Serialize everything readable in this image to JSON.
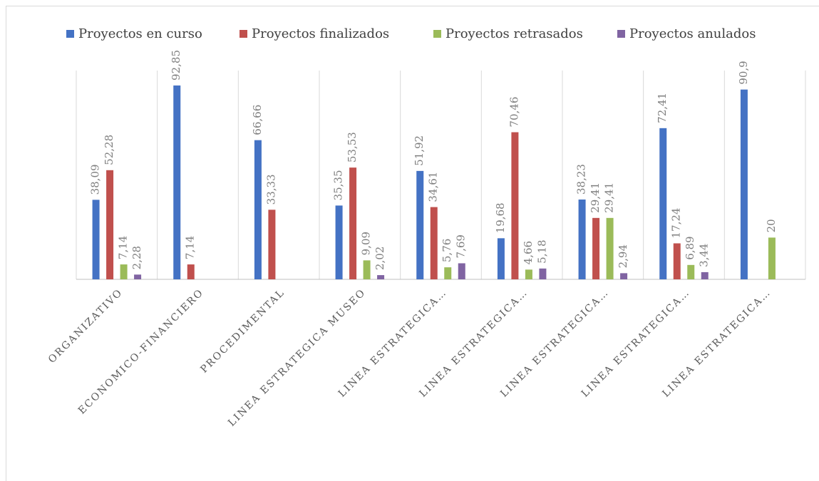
{
  "chart_data": {
    "type": "bar",
    "categories": [
      "ORGANIZATIVO",
      "ECONOMICO-FINANCIERO",
      "PROCEDIMENTAL",
      "LINEA ESTRATEGICA MUSEO",
      "LINEA ESTRATEGICA…",
      "LINEA ESTRATEGICA…",
      "LINEA ESTRATEGICA…",
      "LINEA ESTRATEGICA…",
      "LINEA ESTRATEGICA…"
    ],
    "series": [
      {
        "name": "Proyectos en curso",
        "color": "#4472c4",
        "values": [
          38.09,
          92.85,
          66.66,
          35.35,
          51.92,
          19.68,
          38.23,
          72.41,
          90.9
        ],
        "value_labels": [
          "38,09",
          "92,85",
          "66,66",
          "35,35",
          "51,92",
          "19,68",
          "38,23",
          "72,41",
          "90,9"
        ]
      },
      {
        "name": "Proyectos finalizados",
        "color": "#c0504d",
        "values": [
          52.28,
          7.14,
          33.33,
          53.53,
          34.61,
          70.46,
          29.41,
          17.24,
          null
        ],
        "value_labels": [
          "52,28",
          "7,14",
          "33,33",
          "53,53",
          "34,61",
          "70,46",
          "29,41",
          "17,24",
          null
        ]
      },
      {
        "name": "Proyectos retrasados",
        "color": "#9bbb59",
        "values": [
          7.14,
          null,
          null,
          9.09,
          5.76,
          4.66,
          29.41,
          6.89,
          20
        ],
        "value_labels": [
          "7,14",
          null,
          null,
          "9,09",
          "5,76",
          "4,66",
          "29,41",
          "6,89",
          "20"
        ]
      },
      {
        "name": "Proyectos anulados",
        "color": "#8064a2",
        "values": [
          2.28,
          null,
          null,
          2.02,
          7.69,
          5.18,
          2.94,
          3.44,
          null
        ],
        "value_labels": [
          "2,28",
          null,
          null,
          "2,02",
          "7,69",
          "5,18",
          "2,94",
          "3,44",
          null
        ]
      }
    ],
    "ylim": [
      0,
      100
    ],
    "legend": "top"
  }
}
